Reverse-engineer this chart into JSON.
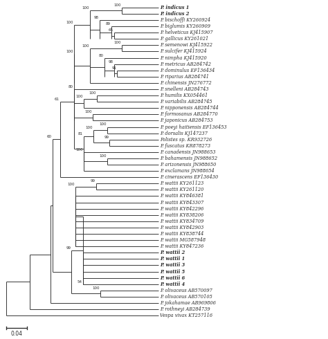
{
  "figsize": [
    4.74,
    4.9
  ],
  "dpi": 100,
  "scale_bar_label": "0.04",
  "tree_color": "#2a2a2a",
  "bold_taxa": [
    "P. indicus 1",
    "P. indicus 2",
    "P. wattii 2",
    "P. wattii 1",
    "P. wattii 3",
    "P. wattii 5",
    "P. wattii 6",
    "P. wattii 4"
  ],
  "taxa": [
    "P. indicus 1",
    "P. indicus 2",
    "P. bischoffi KY260924",
    "P. biglumis KY260909",
    "P. helveticus KJ415907",
    "P. gallicus KY261021",
    "P. semenowi KJ415922",
    "P. sulcifer KJ415924",
    "P. nimpha KJ415920",
    "P. metricus AB284742",
    "P. dominulus EF136434",
    "P. riparius AB284741",
    "P. chinensis JN276772",
    "P. snelleni AB284743",
    "P. humilis KX054461",
    "P. variabilis AB284745",
    "P. nipponensis AB284744",
    "P. formosanus AB284770",
    "P. japonicus AB284753",
    "P. poeyi haitiensis EF136453",
    "P. dorsalis KJ147237",
    "Polistes sp. KR932726",
    "P. fuscatus KR878273",
    "P. canadensis JN988653",
    "P. bahamensis JN988652",
    "P. arizonensis JN988650",
    "P. exclamans JN988654",
    "P. cinerascens EF136430",
    "P. wattii KY261123",
    "P. wattii KY261120",
    "P. wattii KY846381",
    "P. wattii KY843307",
    "P. wattii KY842296",
    "P. wattii KY838206",
    "P. wattii KY834709",
    "P. wattii KY842903",
    "P. wattii KY838744",
    "P. wattii MG587948",
    "P. wattii KY847236",
    "P. wattii 2",
    "P. wattii 1",
    "P. wattii 3",
    "P. wattii 5",
    "P. wattii 6",
    "P. wattii 4",
    "P. olivaceus AB570097",
    "P. olivaceus AB570105",
    "P. jokahamae AB969806",
    "P. rothneyi AB284739",
    "Vespa vivax KT257116"
  ],
  "node_labels": {
    "ind100": "100",
    "bisch98": "98",
    "big89": "89",
    "helv65": "65",
    "top100": "100",
    "sem100": "100",
    "dom91": "91",
    "met98": "98",
    "nim80": "80",
    "sem_grp100": "100",
    "hum100": "100",
    "hum_nip80": "100",
    "form100": "100",
    "snel80": "80",
    "poeyi100": "100",
    "pol99": "99",
    "poeyi_pol100": "100",
    "can100": "100",
    "bah100": "100",
    "polistes81": "81",
    "polistes100": "100",
    "clade61": "61",
    "w261_99": "99",
    "wbig100": "100",
    "w54": "54",
    "oliv100": "100",
    "wattii99": "99",
    "big60": "60",
    "scale": "0.04"
  }
}
